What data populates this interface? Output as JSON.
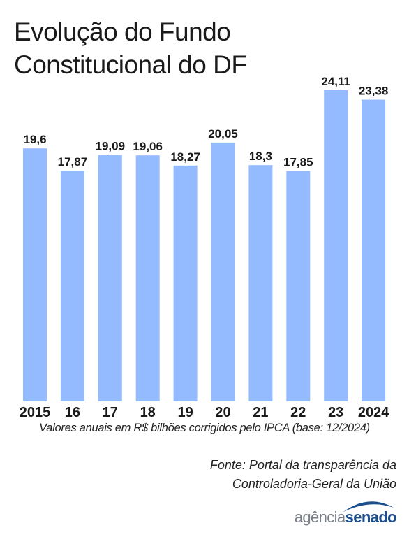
{
  "title": "Evolução do Fundo Constitucional do DF",
  "subtitle": "Valores anuais em R$ bilhões corrigidos pelo IPCA (base:  12/2024)",
  "source_line1": "Fonte: Portal da transparência da",
  "source_line2": "Controladoria-Geral da União",
  "logo": {
    "part1": "agência",
    "part2": "senado"
  },
  "colors": {
    "bar": "#94bbff",
    "text": "#1a1a1a",
    "logo_blue": "#1d4f8f"
  },
  "chart_data": {
    "type": "bar",
    "categories": [
      "2015",
      "16",
      "17",
      "18",
      "19",
      "20",
      "21",
      "22",
      "23",
      "2024"
    ],
    "values": [
      19.6,
      17.87,
      19.09,
      19.06,
      18.27,
      20.05,
      18.3,
      17.85,
      24.11,
      23.38
    ],
    "value_labels": [
      "19,6",
      "17,87",
      "19,09",
      "19,06",
      "18,27",
      "20,05",
      "18,3",
      "17,85",
      "24,11",
      "23,38"
    ],
    "ylim": [
      0,
      24.11
    ]
  }
}
